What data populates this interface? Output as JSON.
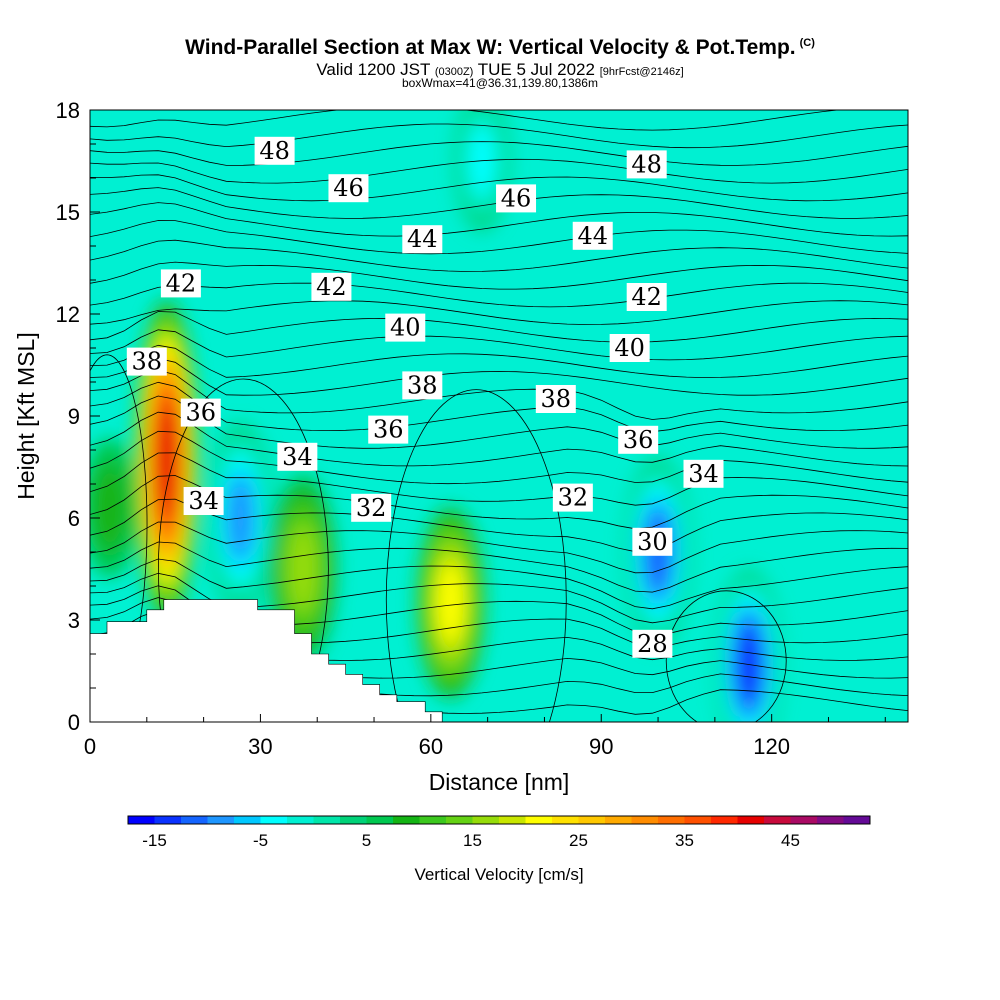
{
  "title": {
    "main": "Wind-Parallel Section at Max W: Vertical Velocity & Pot.Temp.",
    "copyright": "(C)",
    "valid_prefix": "Valid 1200 JST",
    "valid_utc": "(0300Z)",
    "valid_date": "TUE 5 Jul 2022",
    "forecast": "[9hrFcst@2146z]",
    "box": "boxWmax=41@36.31,139.80,1386m"
  },
  "chart_data": {
    "type": "heatmap",
    "xlabel": "Distance [nm]",
    "ylabel": "Height [Kft MSL]",
    "xlim": [
      0,
      144
    ],
    "ylim": [
      0,
      18
    ],
    "xticks": [
      "0",
      "30",
      "60",
      "90",
      "120"
    ],
    "yticks": [
      "0",
      "3",
      "6",
      "9",
      "12",
      "15",
      "18"
    ],
    "colorbar": {
      "label": "Vertical Velocity [cm/s]",
      "range": [
        -17.5,
        52.5
      ],
      "step": 2.5,
      "tick_labels": [
        "-15",
        "-5",
        "5",
        "15",
        "25",
        "35",
        "45"
      ],
      "colors": [
        "#0000ff",
        "#0a32ff",
        "#1464ff",
        "#1e96ff",
        "#00c8ff",
        "#00ffff",
        "#00f0d2",
        "#00e6aa",
        "#00d278",
        "#00c850",
        "#14b414",
        "#3cc81e",
        "#64d214",
        "#96dc0a",
        "#c8e600",
        "#ffff00",
        "#ffe100",
        "#ffc800",
        "#ffaa00",
        "#ff8c00",
        "#ff6e00",
        "#ff5000",
        "#ff2800",
        "#e60000",
        "#c80a3c",
        "#aa0a64",
        "#820a82",
        "#640a96"
      ]
    },
    "vertical_velocity_features": [
      {
        "x": 3.5,
        "y": 6.3,
        "value": 8
      },
      {
        "x": 13.5,
        "y": 7.7,
        "value": 41
      },
      {
        "x": 26.5,
        "y": 6.0,
        "value": -9
      },
      {
        "x": 37.5,
        "y": 4.5,
        "value": 17
      },
      {
        "x": 63.5,
        "y": 3.5,
        "value": 20
      },
      {
        "x": 100,
        "y": 5.0,
        "value": -12
      },
      {
        "x": 116,
        "y": 1.7,
        "value": -14
      },
      {
        "x": 69,
        "y": 16.5,
        "value": -4
      }
    ],
    "theta_labels": [
      {
        "text": "48",
        "x": 32.5,
        "y": 16.8
      },
      {
        "text": "48",
        "x": 98,
        "y": 16.4
      },
      {
        "text": "46",
        "x": 45.5,
        "y": 15.7
      },
      {
        "text": "46",
        "x": 75,
        "y": 15.4
      },
      {
        "text": "44",
        "x": 58.5,
        "y": 14.2
      },
      {
        "text": "44",
        "x": 88.5,
        "y": 14.3
      },
      {
        "text": "42",
        "x": 16,
        "y": 12.9
      },
      {
        "text": "42",
        "x": 42.5,
        "y": 12.8
      },
      {
        "text": "42",
        "x": 98,
        "y": 12.5
      },
      {
        "text": "40",
        "x": 55.5,
        "y": 11.6
      },
      {
        "text": "40",
        "x": 95,
        "y": 11.0
      },
      {
        "text": "38",
        "x": 10,
        "y": 10.6
      },
      {
        "text": "38",
        "x": 58.5,
        "y": 9.9
      },
      {
        "text": "38",
        "x": 82,
        "y": 9.5
      },
      {
        "text": "36",
        "x": 19.5,
        "y": 9.1
      },
      {
        "text": "36",
        "x": 52.5,
        "y": 8.6
      },
      {
        "text": "36",
        "x": 96.5,
        "y": 8.3
      },
      {
        "text": "34",
        "x": 36.5,
        "y": 7.8
      },
      {
        "text": "34",
        "x": 20,
        "y": 6.5
      },
      {
        "text": "34",
        "x": 108,
        "y": 7.3
      },
      {
        "text": "32",
        "x": 49.5,
        "y": 6.3
      },
      {
        "text": "32",
        "x": 85,
        "y": 6.6
      },
      {
        "text": "30",
        "x": 99,
        "y": 5.3
      },
      {
        "text": "28",
        "x": 99,
        "y": 2.3
      }
    ],
    "terrain": [
      [
        0,
        2.6
      ],
      [
        3,
        2.6
      ],
      [
        3,
        2.95
      ],
      [
        10,
        2.95
      ],
      [
        10,
        3.3
      ],
      [
        13,
        3.3
      ],
      [
        13,
        3.6
      ],
      [
        29.5,
        3.6
      ],
      [
        29.5,
        3.3
      ],
      [
        36,
        3.3
      ],
      [
        36,
        2.6
      ],
      [
        39,
        2.6
      ],
      [
        39,
        2.0
      ],
      [
        42,
        2.0
      ],
      [
        42,
        1.7
      ],
      [
        45,
        1.7
      ],
      [
        45,
        1.4
      ],
      [
        48,
        1.4
      ],
      [
        48,
        1.1
      ],
      [
        51,
        1.1
      ],
      [
        51,
        0.8
      ],
      [
        54,
        0.8
      ],
      [
        54,
        0.6
      ],
      [
        59,
        0.6
      ],
      [
        59,
        0.3
      ],
      [
        62,
        0.3
      ],
      [
        62,
        0.0
      ],
      [
        0,
        0.0
      ]
    ]
  }
}
